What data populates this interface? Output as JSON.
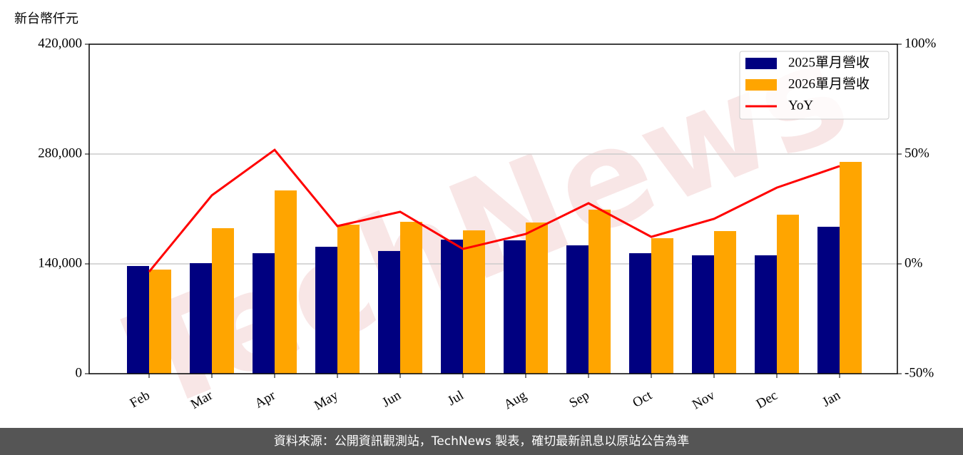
{
  "chart_data": {
    "type": "bar-line",
    "y_label": "新台幣仟元",
    "watermark": "TechNews",
    "categories": [
      "Feb",
      "Mar",
      "Apr",
      "May",
      "Jun",
      "Jul",
      "Aug",
      "Sep",
      "Oct",
      "Nov",
      "Dec",
      "Jan"
    ],
    "series": [
      {
        "name": "2025單月營收",
        "color": "#000080",
        "type": "bar",
        "values": [
          137300,
          140900,
          153600,
          161800,
          156400,
          170900,
          170000,
          163600,
          153600,
          150900,
          150900,
          187300
        ]
      },
      {
        "name": "2026單月營收",
        "color": "#ffa500",
        "type": "bar",
        "values": [
          132700,
          185500,
          233600,
          190000,
          193600,
          182700,
          192700,
          209100,
          172700,
          181800,
          202700,
          270000
        ]
      },
      {
        "name": "YoY",
        "color": "#ff0000",
        "type": "line",
        "axis": "y2",
        "values": [
          -3.6,
          31.2,
          51.9,
          17.2,
          23.7,
          6.8,
          13.6,
          27.6,
          12.3,
          20.5,
          34.7,
          44.5
        ]
      }
    ],
    "ylim": [
      0,
      420000
    ],
    "yticks": [
      0,
      {
        "value": 140000,
        "label": "140,000"
      },
      {
        "value": 280000,
        "label": "280,000"
      },
      {
        "value": 420000,
        "label": "420,000"
      }
    ],
    "y2lim": [
      -50,
      100
    ],
    "y2ticks": [
      {
        "value": -50,
        "label": "-50%"
      },
      {
        "value": 0,
        "label": "0%"
      },
      {
        "value": 50,
        "label": "50%"
      },
      {
        "value": 100,
        "label": "100%"
      }
    ],
    "grid": true,
    "legend": "upper right",
    "footer": "資料來源：公開資訊觀測站，TechNews 製表，確切最新訊息以原站公告為準"
  }
}
